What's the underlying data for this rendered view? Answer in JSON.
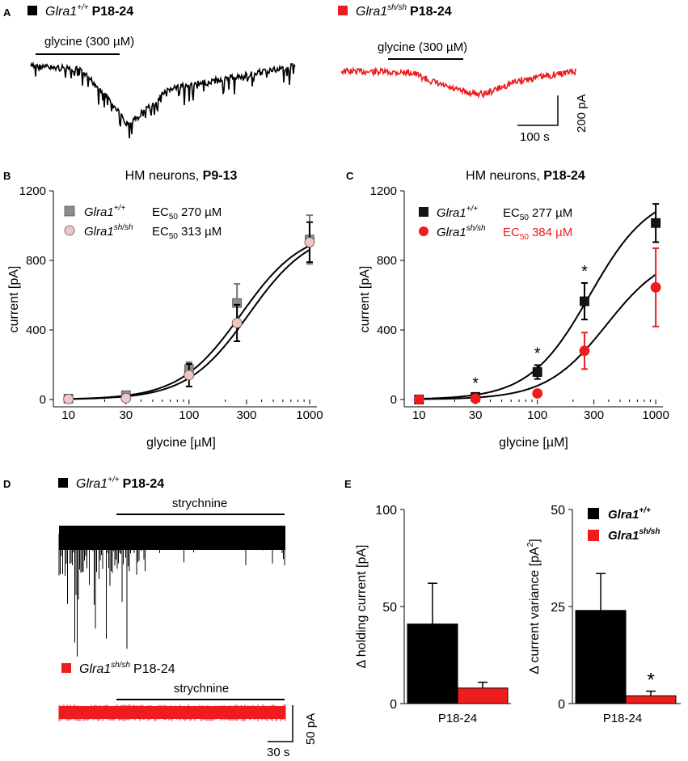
{
  "colors": {
    "wt": "#000000",
    "wt_marker": "#141414",
    "ko": "#ee1c1c",
    "gray_marker": "#8c8c8c",
    "pink_marker": "#f2c4c4"
  },
  "panel_a": {
    "letter": "A",
    "left": {
      "gene": "Glra1",
      "sup": "+/+",
      "age": "P18-24",
      "bar_label": "glycine (300 µM)"
    },
    "right": {
      "gene": "Glra1",
      "sup": "sh/sh",
      "age": "P18-24",
      "bar_label": "glycine (300 µM)"
    },
    "scale": {
      "y_label": "200 pA",
      "x_label": "100 s"
    }
  },
  "chart_data": [
    {
      "panel": "B",
      "type": "scatter",
      "title": "HM neurons, ",
      "title_bold": "P9-13",
      "xlabel": "glycine [µM]",
      "ylabel": "current [pA]",
      "xscale": "log",
      "xlim": [
        7.5,
        1150
      ],
      "ylim": [
        0,
        1200
      ],
      "xticks": [
        10,
        30,
        100,
        300,
        1000
      ],
      "xtick_labels": [
        "10",
        "30",
        "100",
        "300",
        "1000"
      ],
      "yticks": [
        0,
        400,
        800,
        1200
      ],
      "ytick_labels": [
        "0",
        "400",
        "800",
        "1200"
      ],
      "legend": [
        {
          "gene": "Glra1",
          "sup": "+/+",
          "ec_label": "EC",
          "ec_sub": "50",
          "ec_value": "270 µM"
        },
        {
          "gene": "Glra1",
          "sup": "sh/sh",
          "ec_label": "EC",
          "ec_sub": "50",
          "ec_value": "313 µM"
        }
      ],
      "series": [
        {
          "name": "Glra1+/+",
          "marker": "square",
          "x": [
            10,
            30,
            100,
            250,
            1000
          ],
          "y": [
            5,
            25,
            175,
            555,
            920
          ],
          "err": [
            4,
            18,
            40,
            110,
            140
          ],
          "fit_ec50": 270,
          "fit_max": 980
        },
        {
          "name": "Glra1sh/sh",
          "marker": "circle",
          "x": [
            10,
            30,
            100,
            250,
            1000
          ],
          "y": [
            3,
            8,
            140,
            440,
            905
          ],
          "err": [
            3,
            8,
            65,
            105,
            115
          ],
          "fit_ec50": 313,
          "fit_max": 980
        }
      ]
    },
    {
      "panel": "C",
      "type": "scatter",
      "title": "HM neurons, ",
      "title_bold": "P18-24",
      "xlabel": "glycine [µM]",
      "ylabel": "current [pA]",
      "xscale": "log",
      "xlim": [
        7.5,
        1150
      ],
      "ylim": [
        0,
        1200
      ],
      "xticks": [
        10,
        30,
        100,
        300,
        1000
      ],
      "xtick_labels": [
        "10",
        "30",
        "100",
        "300",
        "1000"
      ],
      "yticks": [
        0,
        400,
        800,
        1200
      ],
      "ytick_labels": [
        "0",
        "400",
        "800",
        "1200"
      ],
      "legend": [
        {
          "gene": "Glra1",
          "sup": "+/+",
          "ec_label": "EC",
          "ec_sub": "50",
          "ec_value": "277 µM"
        },
        {
          "gene": "Glra1",
          "sup": "sh/sh",
          "ec_label": "EC",
          "ec_sub": "50",
          "ec_value": "384 µM"
        }
      ],
      "series": [
        {
          "name": "Glra1+/+",
          "marker": "square",
          "x": [
            10,
            30,
            100,
            250,
            1000
          ],
          "y": [
            0,
            15,
            158,
            565,
            1015
          ],
          "err": [
            18,
            10,
            40,
            105,
            110
          ],
          "fit_ec50": 277,
          "fit_max": 1200
        },
        {
          "name": "Glra1sh/sh",
          "marker": "circle",
          "x": [
            10,
            30,
            100,
            250,
            1000
          ],
          "y": [
            0,
            5,
            35,
            280,
            645
          ],
          "err": [
            15,
            8,
            12,
            105,
            225
          ],
          "fit_ec50": 384,
          "fit_max": 860
        }
      ],
      "significance": [
        {
          "x": 30,
          "label": "*"
        },
        {
          "x": 100,
          "label": "*"
        },
        {
          "x": 250,
          "label": "*"
        }
      ]
    },
    {
      "panel": "E1",
      "type": "bar",
      "categories": [
        "Glra1+/+",
        "Glra1sh/sh"
      ],
      "xtick_label": "P18-24",
      "ylabel": "Δ holding current [pA]",
      "ylim": [
        0,
        100
      ],
      "yticks": [
        0,
        50,
        100
      ],
      "ytick_labels": [
        "0",
        "50",
        "100"
      ],
      "values": [
        41,
        8
      ],
      "errors": [
        21,
        3
      ]
    },
    {
      "panel": "E2",
      "type": "bar",
      "categories": [
        "Glra1+/+",
        "Glra1sh/sh"
      ],
      "xtick_label": "P18-24",
      "ylabel": "Δ current variance [pA",
      "ylabel_sup": "2",
      "ylabel_end": "]",
      "ylim": [
        0,
        50
      ],
      "yticks": [
        0,
        25,
        50
      ],
      "ytick_labels": [
        "0",
        "25",
        "50"
      ],
      "values": [
        24,
        2
      ],
      "errors": [
        9.5,
        1.2
      ],
      "significance": [
        {
          "bar": 1,
          "label": "*"
        }
      ],
      "legend": [
        {
          "gene": "Glra1",
          "sup": "+/+"
        },
        {
          "gene": "Glra1",
          "sup": "sh/sh"
        }
      ]
    }
  ],
  "panel_d": {
    "letter": "D",
    "top": {
      "gene": "Glra1",
      "sup": "+/+",
      "age": "P18-24",
      "bar_label": "strychnine"
    },
    "bottom": {
      "gene": "Glra1",
      "sup": "sh/sh",
      "age": "P18-24",
      "bar_label": "strychnine"
    },
    "scale": {
      "y_label": "50 pA",
      "x_label": "30 s"
    }
  },
  "panel_e_letter": "E"
}
